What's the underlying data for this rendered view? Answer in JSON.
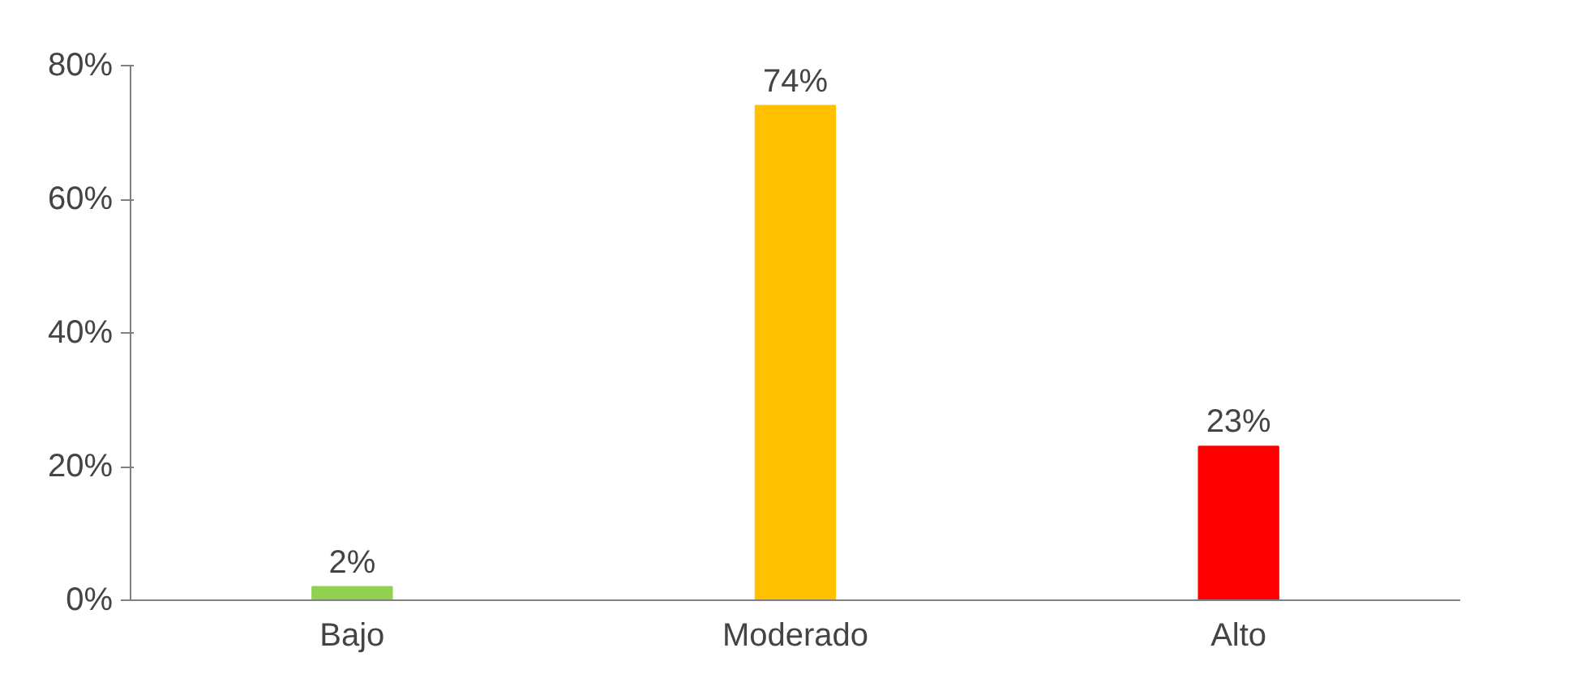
{
  "chart_data": {
    "type": "bar",
    "categories": [
      "Bajo",
      "Moderado",
      "Alto"
    ],
    "values": [
      2,
      74,
      23
    ],
    "colors": [
      "#92d050",
      "#ffc000",
      "#ff0000"
    ],
    "value_labels": [
      "2%",
      "74%",
      "23%"
    ],
    "ylim": [
      0,
      80
    ],
    "yticks": [
      {
        "value": 0,
        "label": "0%"
      },
      {
        "value": 20,
        "label": "20%"
      },
      {
        "value": 40,
        "label": "40%"
      },
      {
        "value": 60,
        "label": "60%"
      },
      {
        "value": 80,
        "label": "80%"
      }
    ],
    "grid": false
  }
}
